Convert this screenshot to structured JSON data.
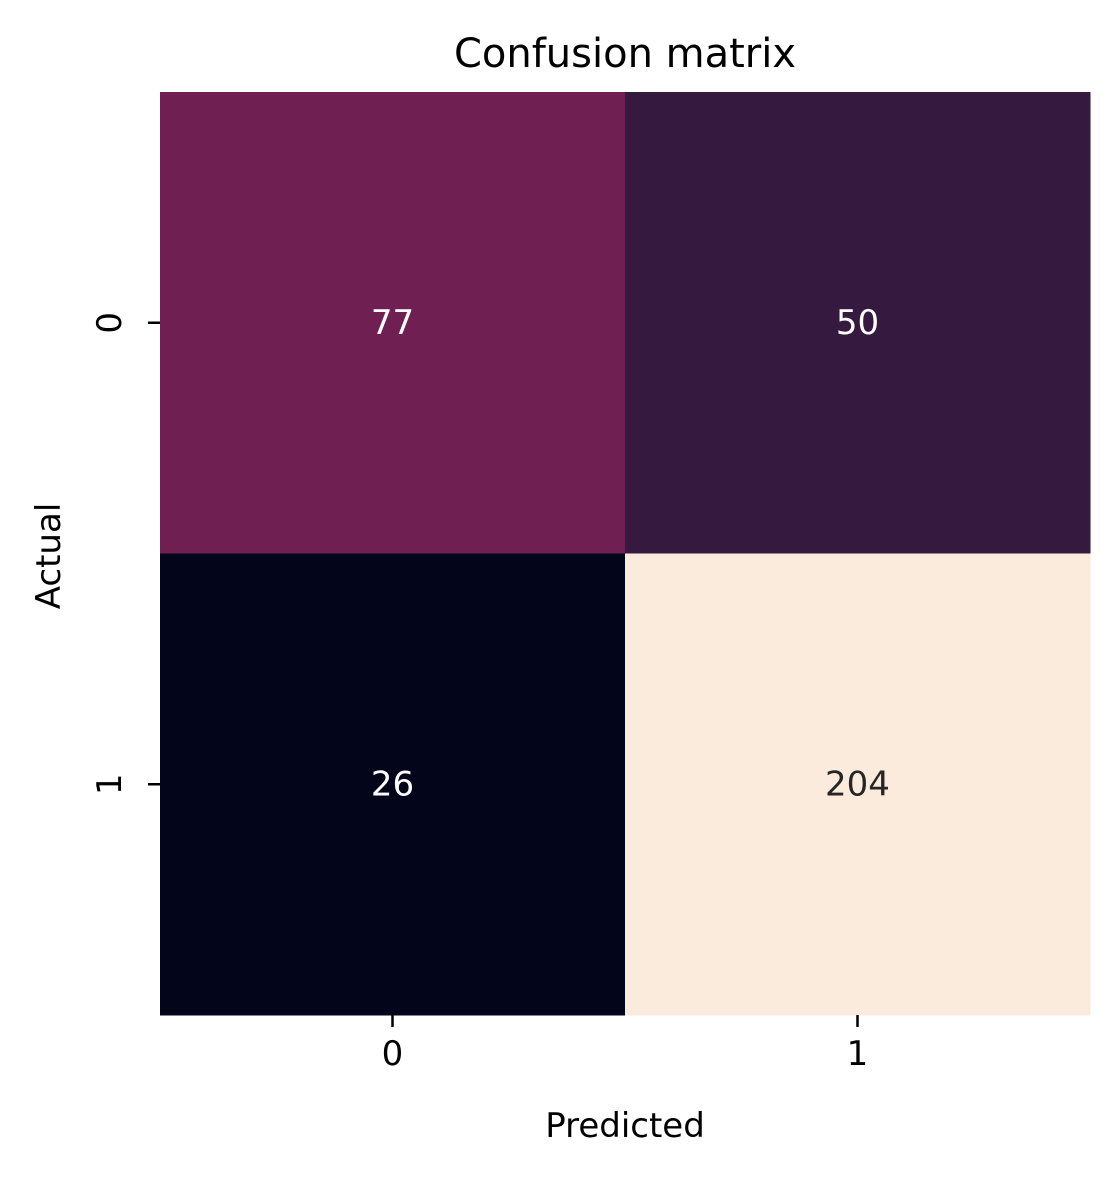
{
  "chart_data": {
    "type": "heatmap",
    "title": "Confusion matrix",
    "xlabel": "Predicted",
    "ylabel": "Actual",
    "x_categories": [
      "0",
      "1"
    ],
    "y_categories": [
      "0",
      "1"
    ],
    "values": [
      [
        77,
        50
      ],
      [
        26,
        204
      ]
    ],
    "colormap": "rocket",
    "colorbar": false,
    "cell_colors": [
      [
        "#701f53",
        "#35193e"
      ],
      [
        "#03051a",
        "#faebdd"
      ]
    ],
    "annotation_colors": [
      [
        "#ffffff",
        "#ffffff"
      ],
      [
        "#ffffff",
        "#262626"
      ]
    ]
  }
}
